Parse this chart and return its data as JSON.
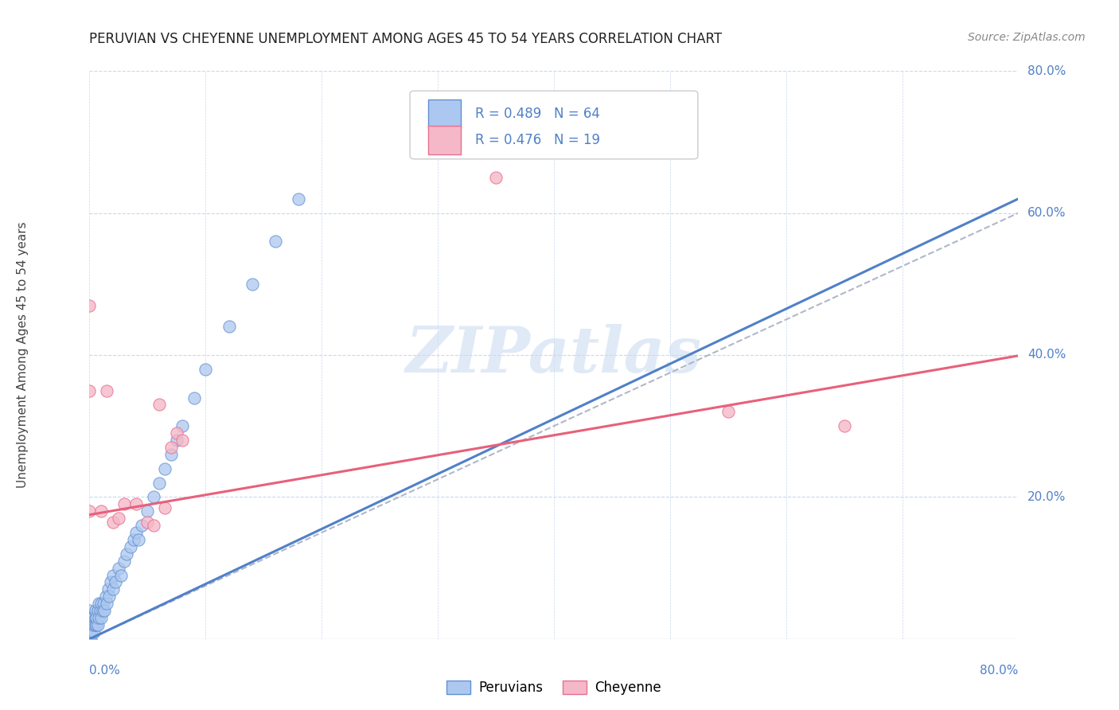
{
  "title": "PERUVIAN VS CHEYENNE UNEMPLOYMENT AMONG AGES 45 TO 54 YEARS CORRELATION CHART",
  "source": "Source: ZipAtlas.com",
  "ylabel": "Unemployment Among Ages 45 to 54 years",
  "legend_labels": [
    "Peruvians",
    "Cheyenne"
  ],
  "peruvian_R": "R = 0.489",
  "peruvian_N": "N = 64",
  "cheyenne_R": "R = 0.476",
  "cheyenne_N": "N = 19",
  "peruvian_color": "#adc8f0",
  "cheyenne_color": "#f5b8c8",
  "peruvian_edge_color": "#6090d0",
  "cheyenne_edge_color": "#e87090",
  "peruvian_line_color": "#5080c8",
  "cheyenne_line_color": "#e8607a",
  "dashed_line_color": "#b0b8c8",
  "background_color": "#ffffff",
  "grid_color": "#c8d8f0",
  "watermark_text": "ZIPatlas",
  "xlim": [
    0.0,
    0.8
  ],
  "ylim": [
    0.0,
    0.8
  ],
  "peruvian_x": [
    0.0,
    0.0,
    0.0,
    0.0,
    0.0,
    0.0,
    0.0,
    0.0,
    0.0,
    0.001,
    0.001,
    0.001,
    0.002,
    0.002,
    0.002,
    0.003,
    0.003,
    0.004,
    0.004,
    0.005,
    0.005,
    0.005,
    0.006,
    0.006,
    0.007,
    0.007,
    0.008,
    0.008,
    0.009,
    0.01,
    0.01,
    0.011,
    0.012,
    0.013,
    0.014,
    0.015,
    0.016,
    0.017,
    0.018,
    0.02,
    0.02,
    0.022,
    0.025,
    0.027,
    0.03,
    0.032,
    0.035,
    0.038,
    0.04,
    0.042,
    0.045,
    0.05,
    0.055,
    0.06,
    0.065,
    0.07,
    0.075,
    0.08,
    0.09,
    0.1,
    0.12,
    0.14,
    0.16,
    0.18
  ],
  "peruvian_y": [
    0.0,
    0.0,
    0.0,
    0.01,
    0.01,
    0.02,
    0.02,
    0.03,
    0.04,
    0.0,
    0.01,
    0.02,
    0.01,
    0.02,
    0.03,
    0.02,
    0.03,
    0.01,
    0.02,
    0.02,
    0.03,
    0.04,
    0.02,
    0.03,
    0.02,
    0.04,
    0.03,
    0.05,
    0.04,
    0.03,
    0.05,
    0.04,
    0.05,
    0.04,
    0.06,
    0.05,
    0.07,
    0.06,
    0.08,
    0.07,
    0.09,
    0.08,
    0.1,
    0.09,
    0.11,
    0.12,
    0.13,
    0.14,
    0.15,
    0.14,
    0.16,
    0.18,
    0.2,
    0.22,
    0.24,
    0.26,
    0.28,
    0.3,
    0.34,
    0.38,
    0.44,
    0.5,
    0.56,
    0.62
  ],
  "cheyenne_x": [
    0.0,
    0.0,
    0.0,
    0.01,
    0.015,
    0.02,
    0.025,
    0.03,
    0.04,
    0.05,
    0.055,
    0.06,
    0.065,
    0.07,
    0.075,
    0.08,
    0.35,
    0.55,
    0.65
  ],
  "cheyenne_y": [
    0.18,
    0.35,
    0.47,
    0.18,
    0.35,
    0.165,
    0.17,
    0.19,
    0.19,
    0.165,
    0.16,
    0.33,
    0.185,
    0.27,
    0.29,
    0.28,
    0.65,
    0.32,
    0.3
  ],
  "peruvian_slope": 0.775,
  "peruvian_intercept": 0.0,
  "cheyenne_slope": 0.28,
  "cheyenne_intercept": 0.175,
  "dashed_slope": 0.75,
  "dashed_intercept": 0.0
}
